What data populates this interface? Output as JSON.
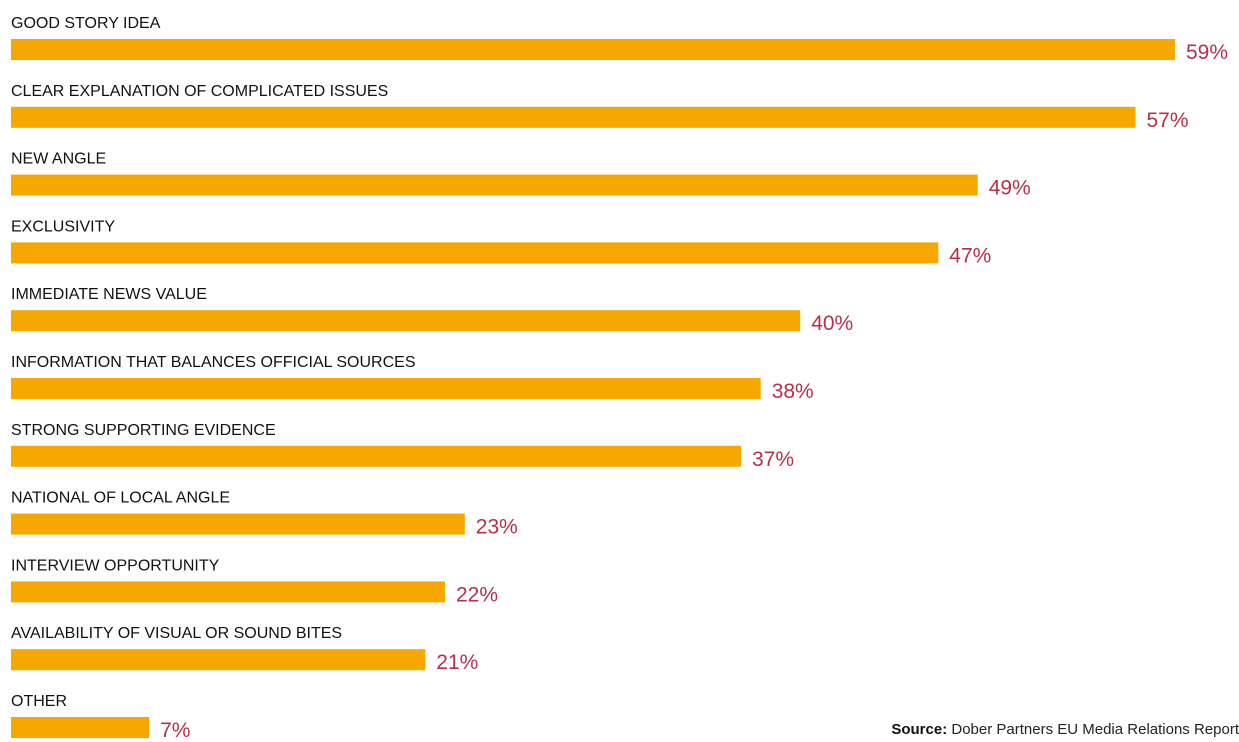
{
  "chart_data": {
    "type": "bar",
    "orientation": "horizontal",
    "categories": [
      "GOOD STORY IDEA",
      "CLEAR EXPLANATION OF COMPLICATED ISSUES",
      "NEW ANGLE",
      "EXCLUSIVITY",
      "IMMEDIATE NEWS VALUE",
      "INFORMATION THAT BALANCES OFFICIAL SOURCES",
      "STRONG SUPPORTING EVIDENCE",
      "NATIONAL OF LOCAL ANGLE",
      "INTERVIEW OPPORTUNITY",
      "AVAILABILITY OF VISUAL OR SOUND BITES",
      "OTHER"
    ],
    "values": [
      59,
      57,
      49,
      47,
      40,
      38,
      37,
      23,
      22,
      21,
      7
    ],
    "value_labels": [
      "59%",
      "57%",
      "49%",
      "47%",
      "40%",
      "38%",
      "37%",
      "23%",
      "22%",
      "21%",
      "7%"
    ],
    "unit": "%",
    "title": "",
    "xlabel": "",
    "ylabel": "",
    "grid": false,
    "legend": false,
    "bar_color": "#f7a800",
    "label_color": "#b5304a"
  },
  "source": {
    "prefix": "Source:",
    "text": " Dober Partners EU Media Relations Report"
  }
}
